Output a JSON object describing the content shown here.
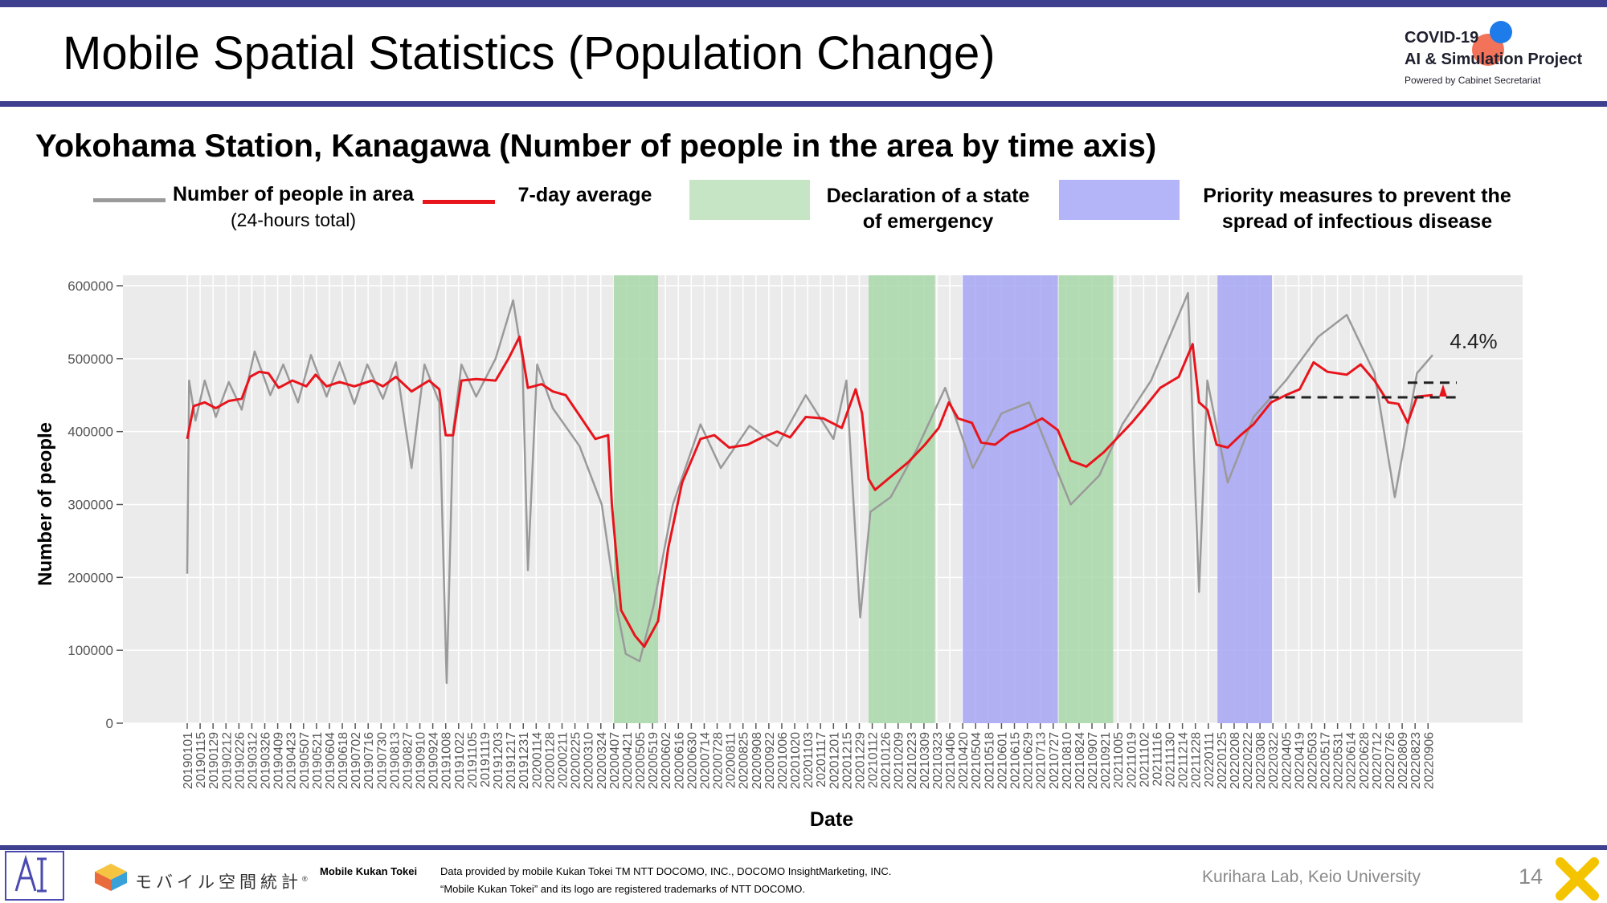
{
  "slide": {
    "title": "Mobile Spatial Statistics (Population Change)",
    "subtitle": "Yokohama Station, Kanagawa (Number of people in the area by time axis)",
    "page_number": "14",
    "lab": "Kurihara Lab, Keio University"
  },
  "brand": {
    "line1": "COVID-19",
    "line2": "AI & Simulation Project",
    "line3": "Powered by Cabinet Secretariat"
  },
  "footer": {
    "logo_text": "モバイル空間統計",
    "logo_mark": "®",
    "product": "Mobile Kukan Tokei",
    "credit1": "Data provided by mobile Kukan Tokei TM NTT DOCOMO, INC., DOCOMO InsightMarketing, INC.",
    "credit2": "“Mobile Kukan Tokei” and its logo are registered trademarks of NTT DOCOMO."
  },
  "legend": {
    "daily_l1": "Number of people in area",
    "daily_l2": "(24-hours total)",
    "avg": "7-day average",
    "emergency_l1": "Declaration of a state",
    "emergency_l2": "of emergency",
    "priority_l1": "Priority measures to prevent the",
    "priority_l2": "spread of infectious disease"
  },
  "colors": {
    "daily": "#9a9a9a",
    "avg": "#e8141c",
    "emergency": "#a9d8a9",
    "priority": "#a6a6f4",
    "panel": "#ebebeb",
    "accent_bar": "#3f3f8f"
  },
  "chart_data": {
    "type": "line",
    "xlabel": "Date",
    "ylabel": "Number of people",
    "ylim": [
      0,
      600000
    ],
    "yticks": [
      0,
      100000,
      200000,
      300000,
      400000,
      500000,
      600000
    ],
    "ytick_labels": [
      "0",
      "100000",
      "200000",
      "300000",
      "400000",
      "500000",
      "600000"
    ],
    "x_start": "20190101",
    "x_end": "20220911",
    "x_tick_labels": [
      "20190101",
      "20190115",
      "20190129",
      "20190212",
      "20190226",
      "20190312",
      "20190326",
      "20190409",
      "20190423",
      "20190507",
      "20190521",
      "20190604",
      "20190618",
      "20190702",
      "20190716",
      "20190730",
      "20190813",
      "20190827",
      "20190910",
      "20190924",
      "20191008",
      "20191022",
      "20191105",
      "20191119",
      "20191203",
      "20191217",
      "20191231",
      "20200114",
      "20200128",
      "20200211",
      "20200225",
      "20200310",
      "20200324",
      "20200407",
      "20200421",
      "20200505",
      "20200519",
      "20200602",
      "20200616",
      "20200630",
      "20200714",
      "20200728",
      "20200811",
      "20200825",
      "20200908",
      "20200922",
      "20201006",
      "20201020",
      "20201103",
      "20201117",
      "20201201",
      "20201215",
      "20201229",
      "20210112",
      "20210126",
      "20210209",
      "20210223",
      "20210309",
      "20210323",
      "20210406",
      "20210420",
      "20210504",
      "20210518",
      "20210601",
      "20210615",
      "20210629",
      "20210713",
      "20210727",
      "20210810",
      "20210824",
      "20210907",
      "20210921",
      "20211005",
      "20211019",
      "20211102",
      "20211116",
      "20211130",
      "20211214",
      "20211228",
      "20220111",
      "20220125",
      "20220208",
      "20220222",
      "20220308",
      "20220322",
      "20220405",
      "20220419",
      "20220503",
      "20220517",
      "20220531",
      "20220614",
      "20220628",
      "20220712",
      "20220726",
      "20220809",
      "20220823",
      "20220906"
    ],
    "shaded_periods": [
      {
        "type": "emergency",
        "start": "20200407",
        "end": "20200525"
      },
      {
        "type": "emergency",
        "start": "20210108",
        "end": "20210321"
      },
      {
        "type": "priority",
        "start": "20210420",
        "end": "20210801"
      },
      {
        "type": "emergency",
        "start": "20210802",
        "end": "20210930"
      },
      {
        "type": "priority",
        "start": "20220121",
        "end": "20220321"
      }
    ],
    "series": [
      {
        "name": "7-day average",
        "points": [
          [
            "20190101",
            390000
          ],
          [
            "20190108",
            435000
          ],
          [
            "20190120",
            440000
          ],
          [
            "20190201",
            432000
          ],
          [
            "20190215",
            442000
          ],
          [
            "20190301",
            445000
          ],
          [
            "20190310",
            475000
          ],
          [
            "20190320",
            482000
          ],
          [
            "20190330",
            480000
          ],
          [
            "20190410",
            460000
          ],
          [
            "20190425",
            470000
          ],
          [
            "20190510",
            462000
          ],
          [
            "20190520",
            478000
          ],
          [
            "20190601",
            462000
          ],
          [
            "20190615",
            468000
          ],
          [
            "20190701",
            462000
          ],
          [
            "20190720",
            470000
          ],
          [
            "20190801",
            462000
          ],
          [
            "20190815",
            475000
          ],
          [
            "20190901",
            455000
          ],
          [
            "20190920",
            470000
          ],
          [
            "20191001",
            458000
          ],
          [
            "20191008",
            395000
          ],
          [
            "20191016",
            395000
          ],
          [
            "20191025",
            470000
          ],
          [
            "20191110",
            472000
          ],
          [
            "20191201",
            470000
          ],
          [
            "20191215",
            500000
          ],
          [
            "20191227",
            530000
          ],
          [
            "20200105",
            460000
          ],
          [
            "20200120",
            465000
          ],
          [
            "20200201",
            455000
          ],
          [
            "20200215",
            450000
          ],
          [
            "20200301",
            422000
          ],
          [
            "20200318",
            390000
          ],
          [
            "20200401",
            395000
          ],
          [
            "20200405",
            300000
          ],
          [
            "20200415",
            155000
          ],
          [
            "20200430",
            120000
          ],
          [
            "20200510",
            105000
          ],
          [
            "20200525",
            140000
          ],
          [
            "20200605",
            240000
          ],
          [
            "20200620",
            330000
          ],
          [
            "20200710",
            390000
          ],
          [
            "20200725",
            395000
          ],
          [
            "20200810",
            378000
          ],
          [
            "20200830",
            382000
          ],
          [
            "20200915",
            392000
          ],
          [
            "20201001",
            400000
          ],
          [
            "20201015",
            392000
          ],
          [
            "20201101",
            420000
          ],
          [
            "20201120",
            418000
          ],
          [
            "20201210",
            405000
          ],
          [
            "20201225",
            458000
          ],
          [
            "20210101",
            425000
          ],
          [
            "20210108",
            335000
          ],
          [
            "20210115",
            320000
          ],
          [
            "20210201",
            338000
          ],
          [
            "20210220",
            358000
          ],
          [
            "20210310",
            382000
          ],
          [
            "20210325",
            405000
          ],
          [
            "20210405",
            440000
          ],
          [
            "20210415",
            418000
          ],
          [
            "20210430",
            412000
          ],
          [
            "20210510",
            385000
          ],
          [
            "20210525",
            382000
          ],
          [
            "20210610",
            398000
          ],
          [
            "20210625",
            405000
          ],
          [
            "20210715",
            418000
          ],
          [
            "20210801",
            402000
          ],
          [
            "20210815",
            360000
          ],
          [
            "20210901",
            352000
          ],
          [
            "20210920",
            372000
          ],
          [
            "20211005",
            392000
          ],
          [
            "20211020",
            412000
          ],
          [
            "20211101",
            430000
          ],
          [
            "20211120",
            460000
          ],
          [
            "20211210",
            475000
          ],
          [
            "20211225",
            520000
          ],
          [
            "20220101",
            440000
          ],
          [
            "20220110",
            430000
          ],
          [
            "20220120",
            382000
          ],
          [
            "20220201",
            378000
          ],
          [
            "20220215",
            395000
          ],
          [
            "20220301",
            410000
          ],
          [
            "20220320",
            440000
          ],
          [
            "20220405",
            450000
          ],
          [
            "20220420",
            458000
          ],
          [
            "20220505",
            495000
          ],
          [
            "20220520",
            482000
          ],
          [
            "20220610",
            478000
          ],
          [
            "20220625",
            492000
          ],
          [
            "20220710",
            470000
          ],
          [
            "20220725",
            440000
          ],
          [
            "20220805",
            438000
          ],
          [
            "20220815",
            412000
          ],
          [
            "20220825",
            448000
          ],
          [
            "20220911",
            450000
          ]
        ]
      },
      {
        "name": "Number of people in area (24-hours total)",
        "points": [
          [
            "20190101",
            205000
          ],
          [
            "20190103",
            470000
          ],
          [
            "20190110",
            415000
          ],
          [
            "20190120",
            470000
          ],
          [
            "20190201",
            420000
          ],
          [
            "20190215",
            468000
          ],
          [
            "20190301",
            430000
          ],
          [
            "20190315",
            510000
          ],
          [
            "20190401",
            450000
          ],
          [
            "20190415",
            492000
          ],
          [
            "20190501",
            440000
          ],
          [
            "20190515",
            505000
          ],
          [
            "20190601",
            448000
          ],
          [
            "20190615",
            495000
          ],
          [
            "20190701",
            438000
          ],
          [
            "20190715",
            492000
          ],
          [
            "20190801",
            445000
          ],
          [
            "20190815",
            495000
          ],
          [
            "20190901",
            350000
          ],
          [
            "20190915",
            492000
          ],
          [
            "20191001",
            440000
          ],
          [
            "20191009",
            55000
          ],
          [
            "20191016",
            400000
          ],
          [
            "20191025",
            492000
          ],
          [
            "20191110",
            448000
          ],
          [
            "20191201",
            500000
          ],
          [
            "20191220",
            580000
          ],
          [
            "20191230",
            500000
          ],
          [
            "20200105",
            210000
          ],
          [
            "20200115",
            492000
          ],
          [
            "20200201",
            432000
          ],
          [
            "20200301",
            380000
          ],
          [
            "20200325",
            300000
          ],
          [
            "20200410",
            160000
          ],
          [
            "20200420",
            95000
          ],
          [
            "20200505",
            85000
          ],
          [
            "20200520",
            160000
          ],
          [
            "20200610",
            300000
          ],
          [
            "20200710",
            410000
          ],
          [
            "20200801",
            350000
          ],
          [
            "20200901",
            408000
          ],
          [
            "20201001",
            380000
          ],
          [
            "20201101",
            450000
          ],
          [
            "20201201",
            390000
          ],
          [
            "20201215",
            470000
          ],
          [
            "20201230",
            145000
          ],
          [
            "20210110",
            290000
          ],
          [
            "20210201",
            310000
          ],
          [
            "20210301",
            375000
          ],
          [
            "20210401",
            460000
          ],
          [
            "20210501",
            350000
          ],
          [
            "20210601",
            425000
          ],
          [
            "20210701",
            440000
          ],
          [
            "20210815",
            300000
          ],
          [
            "20210915",
            340000
          ],
          [
            "20211010",
            410000
          ],
          [
            "20211110",
            470000
          ],
          [
            "20211220",
            590000
          ],
          [
            "20220101",
            180000
          ],
          [
            "20220110",
            470000
          ],
          [
            "20220201",
            330000
          ],
          [
            "20220301",
            420000
          ],
          [
            "20220405",
            470000
          ],
          [
            "20220510",
            530000
          ],
          [
            "20220610",
            560000
          ],
          [
            "20220710",
            480000
          ],
          [
            "20220801",
            310000
          ],
          [
            "20220825",
            480000
          ],
          [
            "20220911",
            505000
          ]
        ]
      }
    ],
    "annotations": [
      {
        "text": "4.4%",
        "baseline_value": 447000,
        "baseline_start": "20220318",
        "recent_value": 467000,
        "recent_start": "20220815"
      }
    ]
  }
}
